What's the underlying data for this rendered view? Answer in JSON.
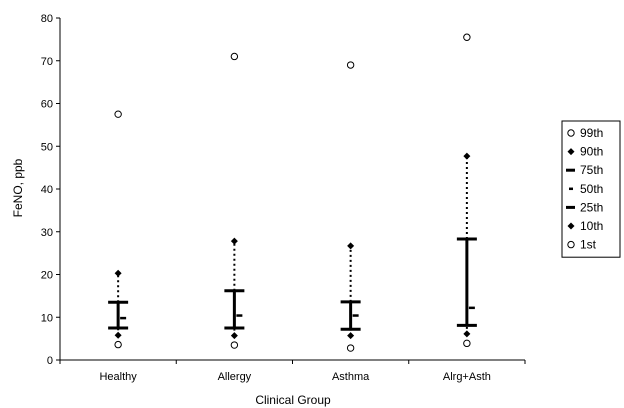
{
  "chart_data": {
    "type": "box-percentile",
    "xlabel": "Clinical Group",
    "ylabel": "FeNO, ppb",
    "ylim": [
      0,
      80
    ],
    "yticks": [
      0,
      10,
      20,
      30,
      40,
      50,
      60,
      70,
      80
    ],
    "grid": false,
    "legend_position": "right",
    "categories": [
      "Healthy",
      "Allergy",
      "Asthma",
      "Alrg+Asth"
    ],
    "series": [
      {
        "name": "99th",
        "marker": "open-circle",
        "values": [
          57.5,
          71,
          69,
          75.5
        ]
      },
      {
        "name": "90th",
        "marker": "filled-diamond",
        "values": [
          20.3,
          27.8,
          26.7,
          47.7
        ]
      },
      {
        "name": "75th",
        "marker": "long-dash",
        "values": [
          13.5,
          16.2,
          13.6,
          28.3
        ]
      },
      {
        "name": "50th",
        "marker": "short-dash",
        "values": [
          9.8,
          10.4,
          10.4,
          12.2
        ]
      },
      {
        "name": "25th",
        "marker": "long-dash",
        "values": [
          7.5,
          7.5,
          7.2,
          8.1
        ]
      },
      {
        "name": "10th",
        "marker": "filled-diamond",
        "values": [
          5.8,
          5.7,
          5.7,
          6.1
        ]
      },
      {
        "name": "1st",
        "marker": "open-circle",
        "values": [
          3.6,
          3.5,
          2.8,
          3.9
        ]
      }
    ]
  }
}
